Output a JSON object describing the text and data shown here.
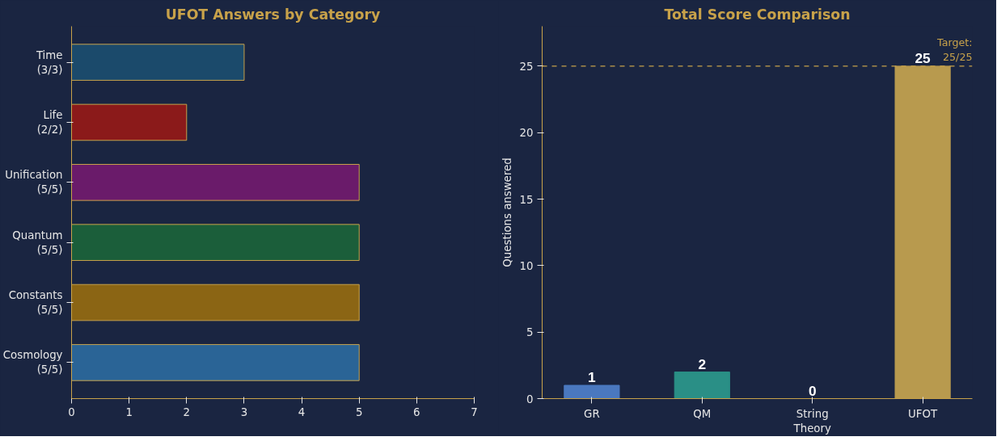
{
  "chart_data": [
    {
      "type": "bar",
      "orientation": "horizontal",
      "title": "UFOT Answers by Category",
      "categories": [
        "Time\n(3/3)",
        "Life\n(2/2)",
        "Unification\n(5/5)",
        "Quantum\n(5/5)",
        "Constants\n(5/5)",
        "Cosmology\n(5/5)"
      ],
      "values": [
        3,
        2,
        5,
        5,
        5,
        5
      ],
      "colors": [
        "#1b4a6b",
        "#8b1a1a",
        "#6a1b6a",
        "#1b5e3a",
        "#8b6514",
        "#2a6496"
      ],
      "xlim": [
        0,
        7
      ],
      "xticks": [
        0,
        1,
        2,
        3,
        4,
        5,
        6,
        7
      ],
      "grid": false
    },
    {
      "type": "bar",
      "title": "Total Score Comparison",
      "ylabel": "Questions answered",
      "categories": [
        "GR",
        "QM",
        "String\nTheory",
        "UFOT"
      ],
      "values": [
        1,
        2,
        0,
        25
      ],
      "colors": [
        "#4a78bf",
        "#2a8f86",
        "#8a8a8a",
        "#b89a4e"
      ],
      "ylim": [
        0,
        28
      ],
      "yticks": [
        0,
        5,
        10,
        15,
        20,
        25
      ],
      "grid": false,
      "data_labels": true,
      "ref_lines": [
        {
          "axis": "y",
          "value": 25,
          "label": "Target:\n25/25",
          "color": "#c8a24a",
          "line_style": "dashed"
        }
      ]
    }
  ]
}
